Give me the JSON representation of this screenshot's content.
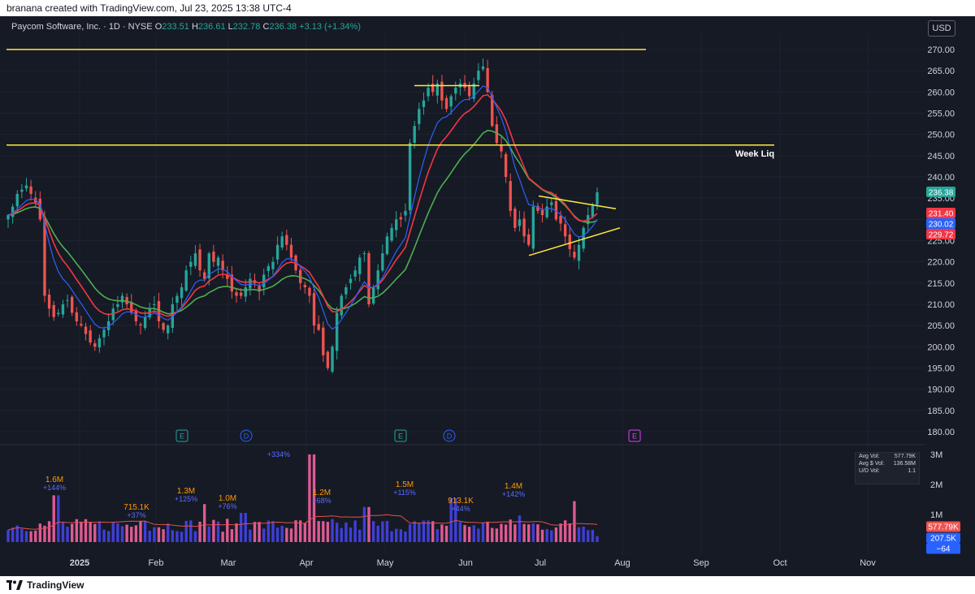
{
  "header": {
    "text": "branana created with TradingView.com, Jul 23, 2025 13:38 UTC-4"
  },
  "legend": {
    "symbol": "Paycom Software, Inc. · 1D · NYSE",
    "o_label": "O",
    "o": "233.51",
    "h_label": "H",
    "h": "236.61",
    "l_label": "L",
    "l": "232.78",
    "c_label": "C",
    "c": "236.38",
    "change": "+3.13 (+1.34%)"
  },
  "currency": "USD",
  "footer": {
    "brand": "TradingView"
  },
  "volume_stats": {
    "avg_vol_label": "Avg Vol:",
    "avg_vol": "577.79K",
    "avg_dollar_vol_label": "Avg $ Vol:",
    "avg_dollar_vol": "136.58M",
    "ud_vol_label": "U/D Vol:",
    "ud_vol": "1.1"
  },
  "colors": {
    "background": "#161a25",
    "up": "#26a69a",
    "down": "#ef5350",
    "ema_fast": "#2962ff",
    "ema_mid": "#f23645",
    "ema_slow": "#4caf50",
    "levels": "#ffeb3b",
    "vol_up": "#3f3fd9",
    "vol_down": "#e05a92",
    "vol_avg": "#e05050"
  },
  "chart_data": {
    "type": "candlestick",
    "timeframe": "1D",
    "y_range": [
      183,
      274
    ],
    "y_ticks": [
      180,
      185,
      190,
      195,
      200,
      205,
      210,
      215,
      220,
      225,
      230,
      235,
      240,
      245,
      250,
      255,
      260,
      265,
      270
    ],
    "x_ticks": [
      "2025",
      "Feb",
      "Mar",
      "Apr",
      "May",
      "Jun",
      "Jul",
      "Aug",
      "Sep",
      "Oct",
      "Nov"
    ],
    "series_closes": [
      231,
      233,
      236,
      237,
      238,
      236,
      234,
      230,
      212,
      209,
      207,
      208,
      210,
      211,
      208,
      206,
      205,
      203,
      201,
      200,
      202,
      204,
      206,
      209,
      210,
      212,
      210,
      208,
      206,
      205,
      207,
      209,
      210,
      206,
      204,
      205,
      210,
      212,
      214,
      218,
      220,
      222,
      218,
      216,
      222,
      220,
      221,
      218,
      216,
      213,
      212,
      212,
      214,
      216,
      215,
      213,
      217,
      219,
      220,
      224,
      226,
      224,
      221,
      218,
      215,
      214,
      212,
      205,
      204,
      198,
      195,
      200,
      208,
      212,
      214,
      216,
      218,
      221,
      222,
      210,
      214,
      218,
      222,
      226,
      228,
      230,
      230,
      232,
      248,
      252,
      256,
      258,
      261,
      260,
      262,
      258,
      256,
      259,
      261,
      262,
      261,
      259,
      262,
      265,
      266,
      260,
      252,
      248,
      246,
      240,
      232,
      228,
      230,
      226,
      224,
      233,
      232,
      231,
      233,
      234,
      230,
      229,
      226,
      223,
      221,
      224,
      228,
      231,
      233.25,
      236.38
    ],
    "ema_fast_last": 230.02,
    "ema_mid_last": 231.4,
    "ema_slow_last": 229.72,
    "last_price": 236.38,
    "price_labels": [
      "236.38",
      "231.40",
      "230.02",
      "229.72"
    ],
    "levels": [
      {
        "price": 270.0
      },
      {
        "price": 247.5,
        "label": "Week Liq"
      }
    ],
    "triangle": {
      "upper": [
        [
          236,
          232.5
        ]
      ],
      "lower": [
        [
          221.5,
          228
        ]
      ]
    },
    "events": [
      {
        "type": "earnings",
        "label": "E",
        "position": "Dec"
      },
      {
        "type": "dividend",
        "label": "D",
        "position": "Feb"
      },
      {
        "type": "earnings",
        "label": "E",
        "position": "Apr"
      },
      {
        "type": "dividend",
        "label": "D",
        "position": "May"
      },
      {
        "type": "earnings_upcoming",
        "label": "E",
        "position": "Jul"
      }
    ],
    "volume": {
      "y_ticks": [
        "3M",
        "2M",
        "1M"
      ],
      "annotations": [
        {
          "value": "1.6M",
          "pct": "+144%"
        },
        {
          "value": "715.1K",
          "pct": "+37%"
        },
        {
          "value": "1.3M",
          "pct": "+125%"
        },
        {
          "value": "1.0M",
          "pct": "+76%"
        },
        {
          "value": "",
          "pct": "+334%"
        },
        {
          "value": "1.2M",
          "pct": "+68%"
        },
        {
          "value": "1.5M",
          "pct": "+115%"
        },
        {
          "value": "913.1K",
          "pct": "+44%"
        },
        {
          "value": "1.4M",
          "pct": "+142%"
        }
      ],
      "last_labels": [
        "577.79K",
        "207.5K",
        "−64"
      ]
    }
  }
}
